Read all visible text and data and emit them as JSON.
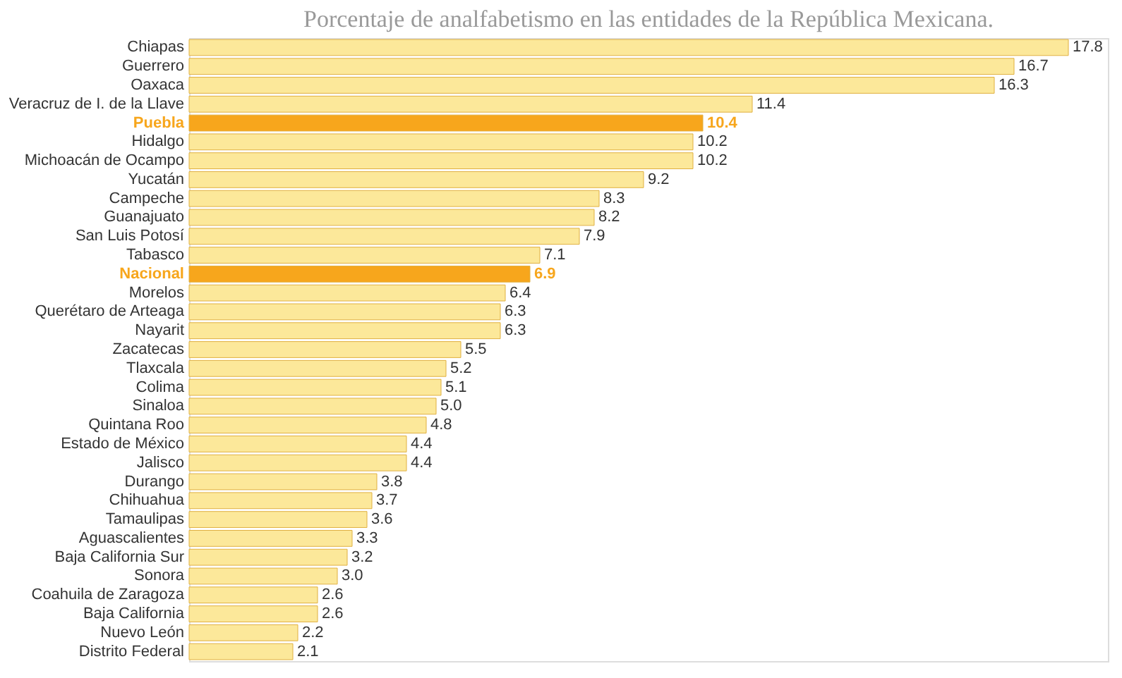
{
  "chart_data": {
    "type": "bar",
    "orientation": "horizontal",
    "title": "Porcentaje de analfabetismo en las entidades de la República Mexicana.",
    "categories": [
      "Chiapas",
      "Guerrero",
      "Oaxaca",
      "Veracruz de I. de la Llave",
      "Puebla",
      "Hidalgo",
      "Michoacán de Ocampo",
      "Yucatán",
      "Campeche",
      "Guanajuato",
      "San Luis Potosí",
      "Tabasco",
      "Nacional",
      "Morelos",
      "Querétaro de Arteaga",
      "Nayarit",
      "Zacatecas",
      "Tlaxcala",
      "Colima",
      "Sinaloa",
      "Quintana Roo",
      "Estado de México",
      "Jalisco",
      "Durango",
      "Chihuahua",
      "Tamaulipas",
      "Aguascalientes",
      "Baja California Sur",
      "Sonora",
      "Coahuila de Zaragoza",
      "Baja California",
      "Nuevo León",
      "Distrito Federal"
    ],
    "values": [
      17.8,
      16.7,
      16.3,
      11.4,
      10.4,
      10.2,
      10.2,
      9.2,
      8.3,
      8.2,
      7.9,
      7.1,
      6.9,
      6.4,
      6.3,
      6.3,
      5.5,
      5.2,
      5.1,
      5.0,
      4.8,
      4.4,
      4.4,
      3.8,
      3.7,
      3.6,
      3.3,
      3.2,
      3.0,
      2.6,
      2.6,
      2.2,
      2.1
    ],
    "value_labels": [
      "17.8",
      "16.7",
      "16.3",
      "11.4",
      "10.4",
      "10.2",
      "10.2",
      "9.2",
      "8.3",
      "8.2",
      "7.9",
      "7.1",
      "6.9",
      "6.4",
      "6.3",
      "6.3",
      "5.5",
      "5.2",
      "5.1",
      "5.0",
      "4.8",
      "4.4",
      "4.4",
      "3.8",
      "3.7",
      "3.6",
      "3.3",
      "3.2",
      "3.0",
      "2.6",
      "2.6",
      "2.2",
      "2.1"
    ],
    "color": "#fce89a",
    "colors": [
      "#fce89a",
      "#fce89a",
      "#fce89a",
      "#fce89a",
      "#f7a61c",
      "#fce89a",
      "#fce89a",
      "#fce89a",
      "#fce89a",
      "#fce89a",
      "#fce89a",
      "#fce89a",
      "#f7a61c",
      "#fce89a",
      "#fce89a",
      "#fce89a",
      "#fce89a",
      "#fce89a",
      "#fce89a",
      "#fce89a",
      "#fce89a",
      "#fce89a",
      "#fce89a",
      "#fce89a",
      "#fce89a",
      "#fce89a",
      "#fce89a",
      "#fce89a",
      "#fce89a",
      "#fce89a",
      "#fce89a",
      "#fce89a",
      "#fce89a"
    ],
    "xlim": [
      0,
      18.6
    ],
    "tick_labels": "y",
    "grid": false
  }
}
